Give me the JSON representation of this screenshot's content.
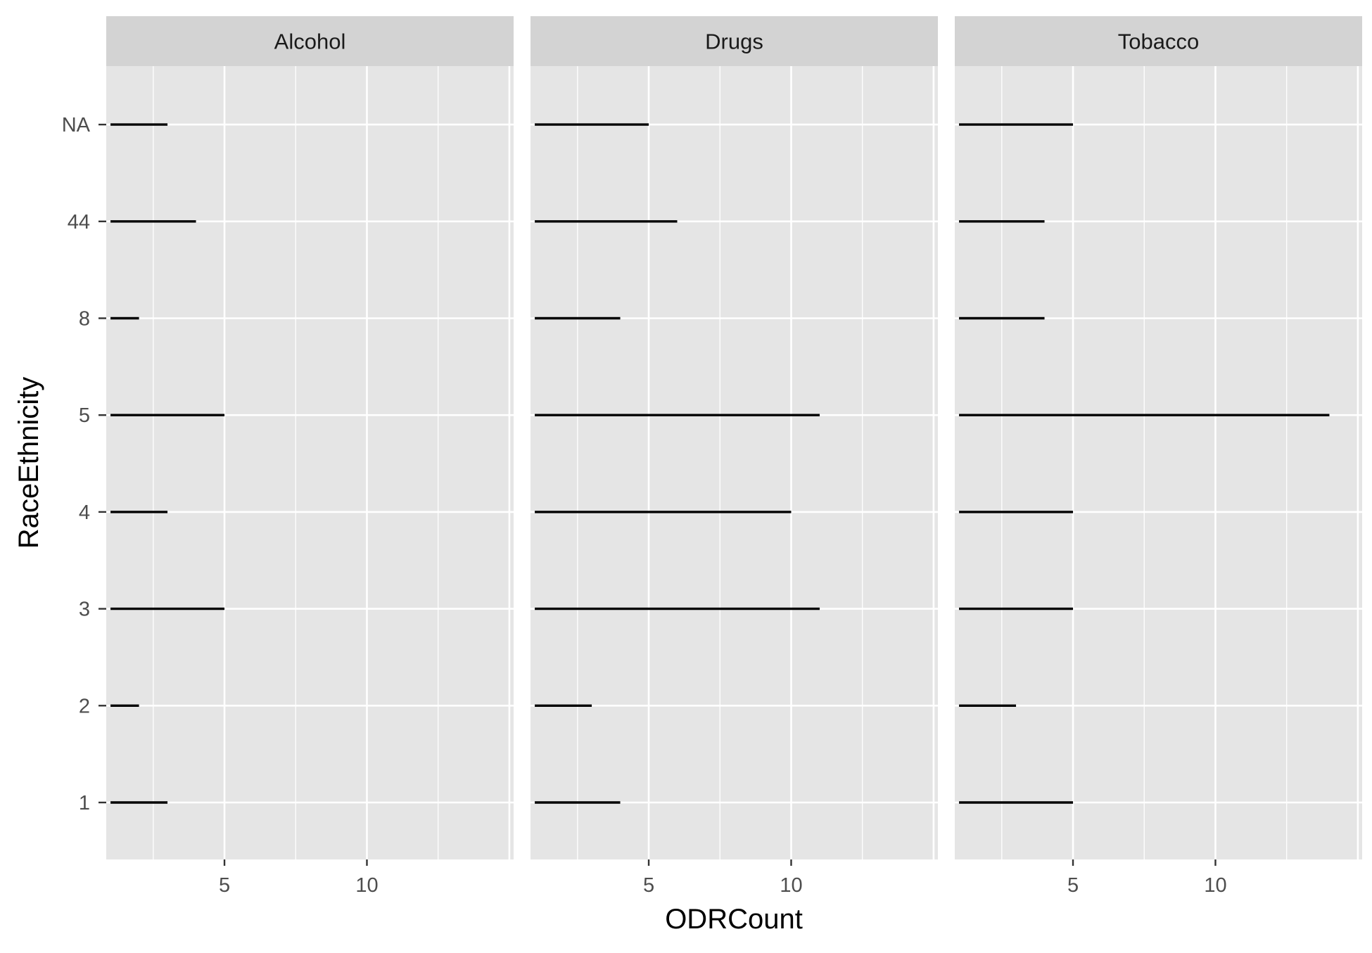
{
  "chart_data": {
    "type": "line",
    "xlabel": "ODRCount",
    "ylabel": "RaceEthnicity",
    "y_categories": [
      "1",
      "2",
      "3",
      "4",
      "5",
      "8",
      "44",
      "NA"
    ],
    "x_ticks": [
      5,
      10
    ],
    "xlim": [
      0.85,
      15.15
    ],
    "grid": true,
    "facets": [
      {
        "name": "Alcohol",
        "segments": [
          {
            "category": "1",
            "x_start": 1,
            "x_end": 3
          },
          {
            "category": "2",
            "x_start": 1,
            "x_end": 2
          },
          {
            "category": "3",
            "x_start": 1,
            "x_end": 5
          },
          {
            "category": "4",
            "x_start": 1,
            "x_end": 3
          },
          {
            "category": "5",
            "x_start": 1,
            "x_end": 5
          },
          {
            "category": "8",
            "x_start": 1,
            "x_end": 2
          },
          {
            "category": "44",
            "x_start": 1,
            "x_end": 4
          },
          {
            "category": "NA",
            "x_start": 1,
            "x_end": 3
          }
        ]
      },
      {
        "name": "Drugs",
        "segments": [
          {
            "category": "1",
            "x_start": 1,
            "x_end": 4
          },
          {
            "category": "2",
            "x_start": 1,
            "x_end": 3
          },
          {
            "category": "3",
            "x_start": 1,
            "x_end": 11
          },
          {
            "category": "4",
            "x_start": 1,
            "x_end": 10
          },
          {
            "category": "5",
            "x_start": 1,
            "x_end": 11
          },
          {
            "category": "8",
            "x_start": 1,
            "x_end": 4
          },
          {
            "category": "44",
            "x_start": 1,
            "x_end": 6
          },
          {
            "category": "NA",
            "x_start": 1,
            "x_end": 5
          }
        ]
      },
      {
        "name": "Tobacco",
        "segments": [
          {
            "category": "1",
            "x_start": 1,
            "x_end": 5
          },
          {
            "category": "2",
            "x_start": 1,
            "x_end": 3
          },
          {
            "category": "3",
            "x_start": 1,
            "x_end": 5
          },
          {
            "category": "4",
            "x_start": 1,
            "x_end": 5
          },
          {
            "category": "5",
            "x_start": 1,
            "x_end": 14
          },
          {
            "category": "8",
            "x_start": 1,
            "x_end": 4
          },
          {
            "category": "44",
            "x_start": 1,
            "x_end": 4
          },
          {
            "category": "NA",
            "x_start": 1,
            "x_end": 5
          }
        ]
      }
    ],
    "colors": {
      "panel_background": "#e5e5e5",
      "strip_background": "#d3d3d3",
      "grid": "#ffffff",
      "segment": "#000000",
      "tick_label": "#4d4d4d",
      "axis_title": "#000000",
      "strip_text": "#1a1a1a"
    }
  }
}
